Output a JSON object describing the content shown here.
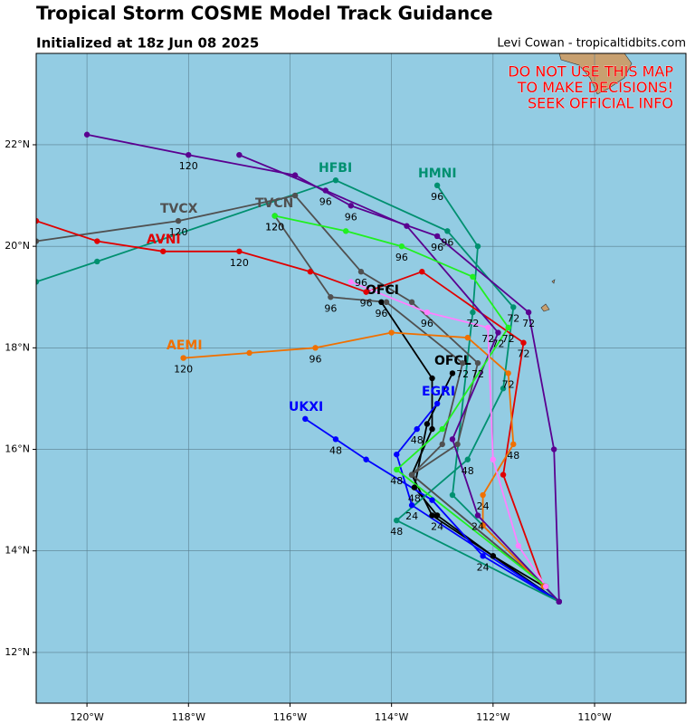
{
  "chart_data": {
    "type": "track",
    "title": "Tropical Storm COSME Model Track Guidance",
    "subtitle": "Initialized at 18z Jun 08 2025",
    "credit": "Levi Cowan - tropicaltidbits.com",
    "warning": [
      "DO NOT USE THIS MAP",
      "TO MAKE DECISIONS!",
      "SEEK OFFICIAL INFO"
    ],
    "xlim": [
      -121,
      -108.2
    ],
    "ylim": [
      11,
      23.8
    ],
    "xticks": [
      {
        "value": -120,
        "label": "120°W"
      },
      {
        "value": -118,
        "label": "118°W"
      },
      {
        "value": -116,
        "label": "116°W"
      },
      {
        "value": -114,
        "label": "114°W"
      },
      {
        "value": -112,
        "label": "112°W"
      },
      {
        "value": -110,
        "label": "110°W"
      }
    ],
    "yticks": [
      {
        "value": 12,
        "label": "12°N"
      },
      {
        "value": 14,
        "label": "14°N"
      },
      {
        "value": 16,
        "label": "16°N"
      },
      {
        "value": 18,
        "label": "18°N"
      },
      {
        "value": 20,
        "label": "20°N"
      },
      {
        "value": 22,
        "label": "22°N"
      }
    ],
    "grid": true,
    "series": [
      {
        "name": "OFCL",
        "color": "#000000",
        "x": [
          -111.0,
          -112.0,
          -113.1,
          -113.55,
          -113.3,
          -112.8
        ],
        "values": [
          13.3,
          13.9,
          14.7,
          15.25,
          16.5,
          17.5
        ],
        "labels": [
          null,
          null,
          24,
          48,
          null,
          null
        ]
      },
      {
        "name": "OFCI",
        "color": "#000000",
        "x": [
          -110.7,
          -112.0,
          -113.2,
          -113.6,
          -113.2,
          -113.2,
          -114.2
        ],
        "values": [
          13.0,
          13.9,
          14.7,
          15.5,
          16.4,
          17.4,
          18.9
        ],
        "labels": [
          null,
          null,
          null,
          null,
          null,
          null,
          96
        ]
      },
      {
        "name": "EGRI",
        "color": "#0000ff",
        "x": [
          -110.7,
          -113.6,
          -113.9,
          -113.5,
          -113.1
        ],
        "values": [
          13.0,
          14.9,
          15.9,
          16.4,
          16.9
        ],
        "labels": [
          null,
          24,
          null,
          48,
          null
        ]
      },
      {
        "name": "UKXI",
        "color": "#0000ff",
        "x": [
          -110.7,
          -112.2,
          -113.2,
          -114.5,
          -115.1,
          -115.7
        ],
        "values": [
          13.0,
          13.9,
          15.0,
          15.8,
          16.2,
          16.6
        ],
        "labels": [
          null,
          24,
          null,
          null,
          48,
          null
        ]
      },
      {
        "name": "HFBI",
        "color": "#009070",
        "x": [
          -110.7,
          -113.9,
          -112.5,
          -111.8,
          -111.6,
          -112.9,
          -115.1,
          -119.8,
          -121.0
        ],
        "values": [
          13.0,
          14.6,
          15.8,
          17.2,
          18.8,
          20.3,
          21.3,
          19.7,
          19.3
        ],
        "labels": [
          null,
          48,
          48,
          null,
          72,
          96,
          null,
          null,
          null
        ]
      },
      {
        "name": "HMNI",
        "color": "#009070",
        "x": [
          -110.7,
          -112.8,
          -112.4,
          -112.3,
          -113.1
        ],
        "values": [
          13.0,
          15.1,
          18.7,
          20.0,
          21.2
        ],
        "labels": [
          null,
          null,
          72,
          null,
          96
        ]
      },
      {
        "name": "TVCX",
        "color": "#505050",
        "x": [
          -110.96,
          -113.6,
          -112.7,
          -112.3,
          -113.6,
          -114.6,
          -115.9,
          -118.2,
          -121.0
        ],
        "values": [
          13.3,
          15.5,
          16.1,
          17.7,
          18.9,
          19.5,
          21.0,
          20.5,
          20.1
        ],
        "labels": [
          null,
          null,
          null,
          72,
          null,
          96,
          null,
          120,
          null
        ]
      },
      {
        "name": "TVCN",
        "color": "#505050",
        "x": [
          -110.96,
          -113.6,
          -113.0,
          -112.6,
          -114.1,
          -115.2,
          -116.3
        ],
        "values": [
          13.3,
          15.5,
          16.1,
          17.7,
          18.9,
          19.0,
          20.6
        ],
        "labels": [
          null,
          null,
          null,
          72,
          null,
          96,
          120
        ]
      },
      {
        "name": "AVNI",
        "color": "#e00000",
        "x": [
          -111.0,
          -111.8,
          -111.4,
          -113.4,
          -114.5,
          -115.6,
          -117.0,
          -118.5,
          -119.8,
          -121.0
        ],
        "values": [
          13.3,
          15.5,
          18.1,
          19.5,
          19.1,
          19.5,
          19.9,
          19.9,
          20.1,
          20.5
        ],
        "labels": [
          null,
          null,
          72,
          null,
          96,
          null,
          120,
          null,
          null,
          null
        ]
      },
      {
        "name": "AEMI",
        "color": "#f07000",
        "x": [
          -111.0,
          -112.2,
          -112.2,
          -111.6,
          -111.7,
          -112.5,
          -114.0,
          -115.5,
          -116.8,
          -118.1
        ],
        "values": [
          13.3,
          14.5,
          15.1,
          16.1,
          17.5,
          18.2,
          18.3,
          18.0,
          17.9,
          17.8
        ],
        "labels": [
          null,
          null,
          24,
          48,
          72,
          null,
          null,
          96,
          null,
          120
        ]
      },
      {
        "color": "#5a0090",
        "x": [
          -110.7,
          -110.8,
          -111.3,
          -113.1,
          -114.8,
          -115.9,
          -118.0,
          -120.0
        ],
        "values": [
          13.0,
          16.0,
          18.7,
          20.2,
          20.8,
          21.4,
          21.8,
          22.2
        ],
        "labels": [
          null,
          null,
          72,
          96,
          96,
          null,
          120,
          null
        ]
      },
      {
        "color": "#5a0090",
        "x": [
          -110.7,
          -112.3,
          -112.8,
          -111.9,
          -113.7,
          -115.3,
          -117.0
        ],
        "values": [
          13.0,
          14.7,
          16.2,
          18.3,
          20.4,
          21.1,
          21.8
        ],
        "labels": [
          null,
          24,
          null,
          72,
          null,
          96,
          null
        ]
      },
      {
        "color": "#20f020",
        "x": [
          -110.96,
          -113.9,
          -113.0,
          -111.7,
          -112.4,
          -113.8,
          -114.9,
          -116.3
        ],
        "values": [
          13.3,
          15.6,
          16.4,
          18.4,
          19.4,
          20.0,
          20.3,
          20.6
        ],
        "labels": [
          null,
          48,
          null,
          72,
          null,
          96,
          null,
          120
        ]
      },
      {
        "color": "#ff80ff",
        "x": [
          -110.96,
          -111.5,
          -112.0,
          -112.1,
          -113.3,
          -114.8
        ],
        "values": [
          13.3,
          14.1,
          15.8,
          18.4,
          18.7,
          19.3
        ],
        "labels": [
          null,
          null,
          null,
          72,
          96,
          null
        ]
      }
    ]
  }
}
